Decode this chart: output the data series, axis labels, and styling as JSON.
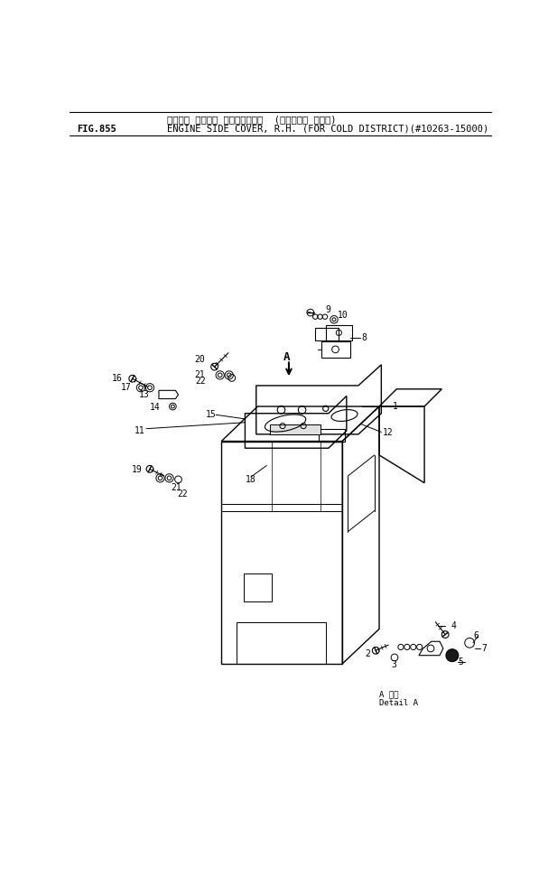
{
  "bg_color": "#ffffff",
  "line_color": "#000000",
  "text_color": "#000000",
  "fig_label": "FIG.855",
  "title_jp": "エンジン サイト゛ カバー、ミキ゛  (カンレイチ シヨウ)",
  "title_en": "ENGINE SIDE COVER, R.H. (FOR COLD DISTRICT)(#10263-15000)",
  "font_size": 7.5,
  "label_font_size": 7
}
